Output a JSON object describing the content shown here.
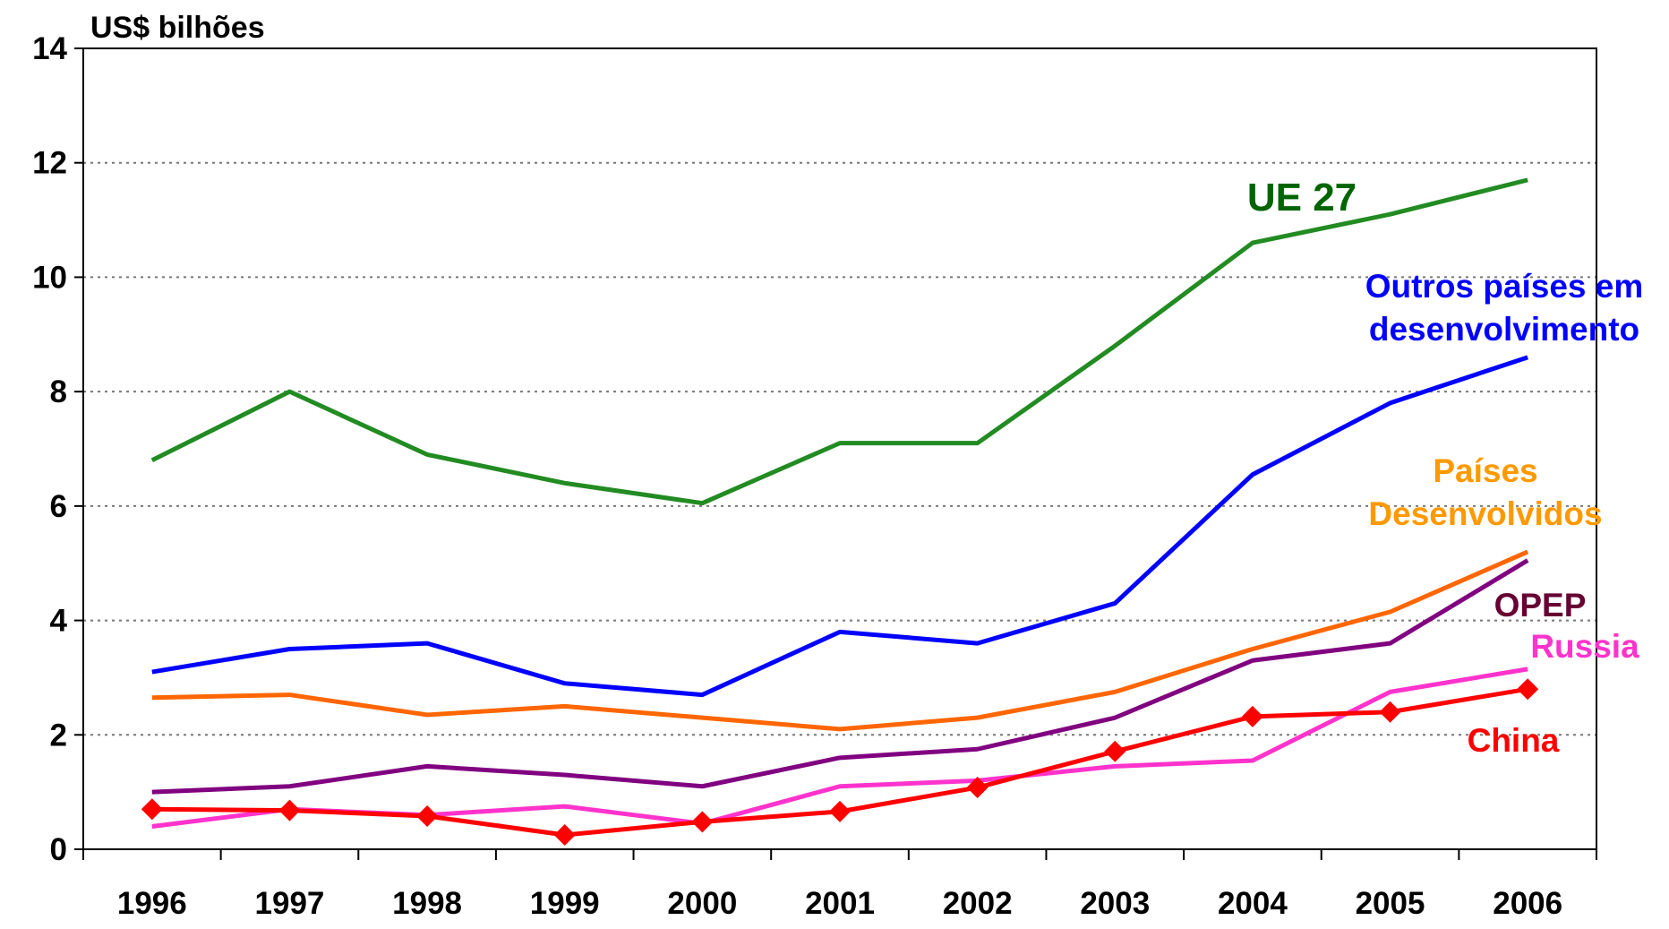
{
  "chart_data": {
    "type": "line",
    "y_label": "US$ bilhões",
    "categories": [
      "1996",
      "1997",
      "1998",
      "1999",
      "2000",
      "2001",
      "2002",
      "2003",
      "2004",
      "2005",
      "2006"
    ],
    "ylim": [
      0,
      14
    ],
    "yticks": [
      0,
      2,
      4,
      6,
      8,
      10,
      12,
      14
    ],
    "grid": true,
    "series": [
      {
        "name": "UE 27",
        "color": "#228b22",
        "label_color": "#006400",
        "values": [
          6.8,
          8.0,
          6.9,
          6.4,
          6.05,
          7.1,
          7.1,
          8.8,
          10.6,
          11.1,
          11.7
        ]
      },
      {
        "name": "Outros países em desenvolvimento",
        "color": "#0000ff",
        "label_color": "#0000ff",
        "values": [
          3.1,
          3.5,
          3.6,
          2.9,
          2.7,
          3.8,
          3.6,
          4.3,
          6.55,
          7.8,
          8.6
        ]
      },
      {
        "name": "Países Desenvolvidos",
        "color": "#ff6600",
        "label_color": "#ff9900",
        "values": [
          2.65,
          2.7,
          2.35,
          2.5,
          2.3,
          2.1,
          2.3,
          2.75,
          3.5,
          4.15,
          5.2
        ]
      },
      {
        "name": "OPEP",
        "color": "#800080",
        "label_color": "#660033",
        "values": [
          1.0,
          1.1,
          1.45,
          1.3,
          1.1,
          1.6,
          1.75,
          2.3,
          3.3,
          3.6,
          5.05
        ]
      },
      {
        "name": "Russia",
        "color": "#ff33cc",
        "label_color": "#ff33cc",
        "values": [
          0.4,
          0.7,
          0.6,
          0.75,
          0.45,
          1.1,
          1.2,
          1.45,
          1.55,
          2.75,
          3.15
        ]
      },
      {
        "name": "China",
        "color": "#ff0000",
        "label_color": "#ff0000",
        "marker": "diamond",
        "values": [
          0.7,
          0.68,
          0.58,
          0.25,
          0.48,
          0.66,
          1.08,
          1.71,
          2.32,
          2.4,
          2.8
        ]
      }
    ]
  }
}
